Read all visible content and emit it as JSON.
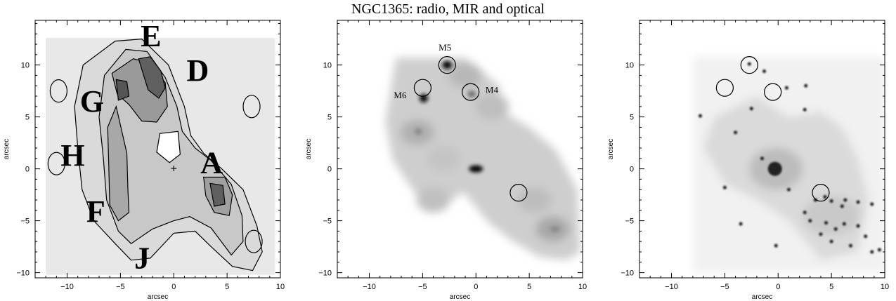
{
  "figure": {
    "title": "NGC1365: radio, MIR and optical"
  },
  "axes": {
    "xlabel": "arcsec",
    "ylabel": "arcsec",
    "xlim": [
      -13,
      10
    ],
    "ylim": [
      -10.5,
      14.3
    ],
    "xticks": [
      -10,
      -5,
      0,
      5,
      10
    ],
    "yticks": [
      -10,
      -5,
      0,
      5,
      10
    ]
  },
  "panels": [
    {
      "kind": "radio",
      "labels": [
        {
          "text": "E",
          "x": -3.1,
          "y": 11.8
        },
        {
          "text": "D",
          "x": 1.2,
          "y": 8.5
        },
        {
          "text": "G",
          "x": -8.8,
          "y": 5.5
        },
        {
          "text": "H",
          "x": -10.6,
          "y": 0.3
        },
        {
          "text": "A",
          "x": 2.5,
          "y": -0.4
        },
        {
          "text": "F",
          "x": -8.2,
          "y": -5.1
        },
        {
          "text": "J",
          "x": -3.7,
          "y": -9.6
        }
      ]
    },
    {
      "kind": "mir",
      "labels": [
        {
          "text": "M5",
          "x": -3.5,
          "y": 11.4
        },
        {
          "text": "M4",
          "x": 0.9,
          "y": 7.3
        },
        {
          "text": "M6",
          "x": -7.7,
          "y": 6.8
        }
      ],
      "circles": [
        {
          "x": -2.7,
          "y": 10.0
        },
        {
          "x": -0.5,
          "y": 7.4
        },
        {
          "x": -5.0,
          "y": 7.8
        },
        {
          "x": 4.0,
          "y": -2.3
        }
      ]
    },
    {
      "kind": "optical",
      "circles": [
        {
          "x": -2.7,
          "y": 10.0
        },
        {
          "x": -0.5,
          "y": 7.4
        },
        {
          "x": -5.0,
          "y": 7.8
        },
        {
          "x": 4.0,
          "y": -2.3
        }
      ]
    }
  ]
}
